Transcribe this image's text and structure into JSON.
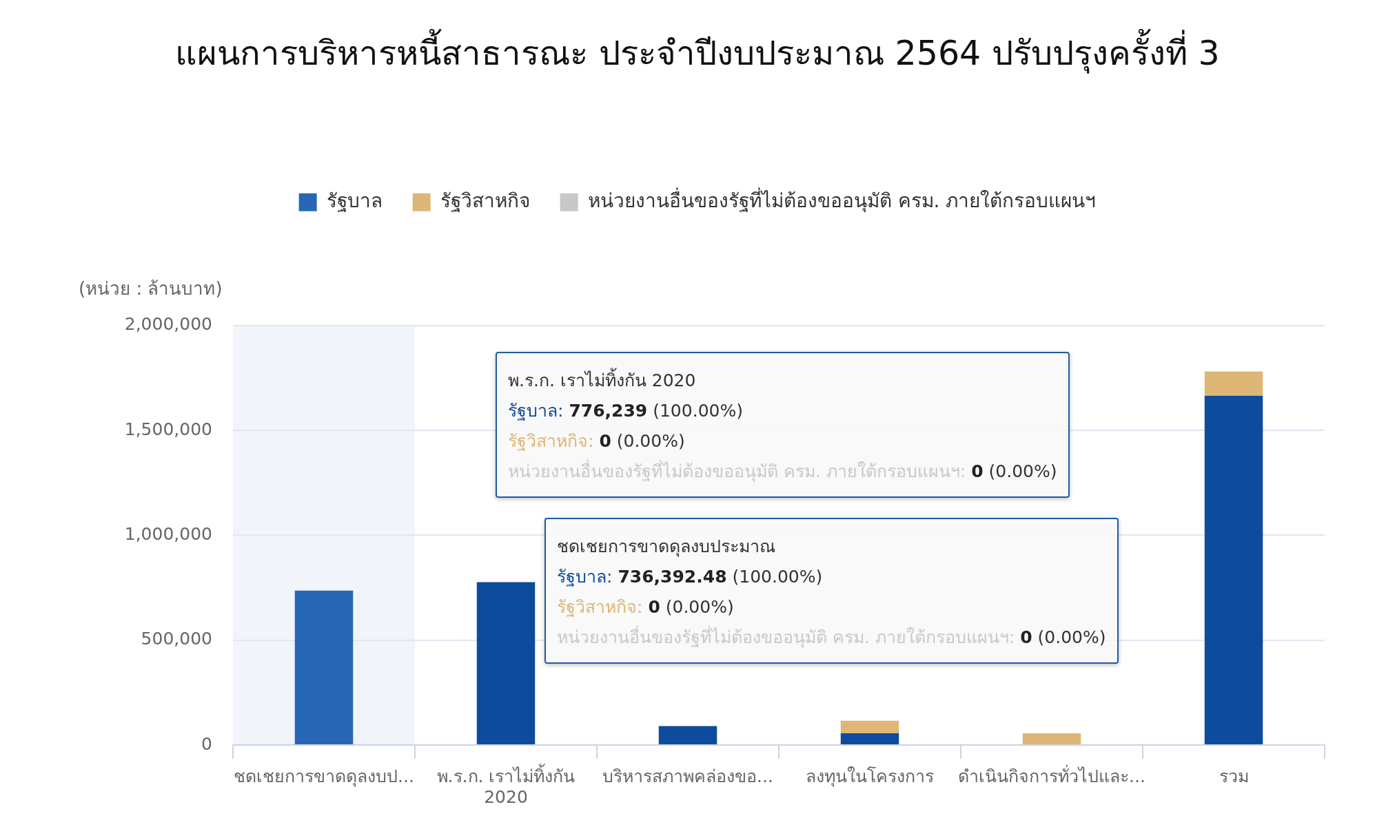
{
  "chart_data": {
    "type": "bar",
    "title": "แผนการบริหารหนี้สาธารณะ ประจำปีงบประมาณ 2564 ปรับปรุงครั้งที่ 3",
    "ylabel": "(หน่วย : ล้านบาท)",
    "categories": [
      "ชดเชยการขาดดุลงบป...",
      "พ.ร.ก. เราไม่ทิ้งกัน 2020",
      "บริหารสภาพคล่องขอ...",
      "ลงทุนในโครงการ",
      "ดำเนินกิจการทั่วไปและ...",
      "รวม"
    ],
    "series": [
      {
        "name": "รัฐบาล",
        "color": "#0d4c9c",
        "colors": [
          "#2767b5",
          "#0d4c9c",
          "#0d4c9c",
          "#0d4c9c",
          "#0d4c9c",
          "#0d4c9c"
        ],
        "values": [
          736392.48,
          776239,
          90000,
          56000,
          0,
          1665000
        ]
      },
      {
        "name": "รัฐวิสาหกิจ",
        "color": "#deb676",
        "values": [
          0,
          0,
          0,
          60000,
          56000,
          116000
        ]
      },
      {
        "name": "หน่วยงานอื่นของรัฐที่ไม่ต้องขออนุมัติ ครม. ภายใต้กรอบแผนฯ",
        "color": "#c8c8c8",
        "values": [
          0,
          0,
          0,
          0,
          0,
          0
        ]
      }
    ],
    "stacked": true,
    "ylim": [
      0,
      2000000
    ],
    "yticks": [
      0,
      {
        "value": 500000,
        "label": "500,000"
      },
      {
        "value": 1000000,
        "label": "1,000,000"
      },
      {
        "value": 1500000,
        "label": "1,500,000"
      },
      {
        "value": 2000000,
        "label": "2,000,000"
      }
    ],
    "grid": "y",
    "legend": "top",
    "bands": [
      {
        "axis": "x",
        "from": "ชดเชยการขาดดุลงบป...",
        "to": "ชดเชยการขาดดุลงบป...",
        "color": "#f1f4f9"
      }
    ],
    "annotations": [
      "พ.ร.ก. เราไม่ทิ้งกัน 2020",
      "รัฐบาล: 776,239 (100.00%)",
      "รัฐวิสาหกิจ: 0 (0.00%)",
      "หน่วยงานอื่นของรัฐที่ไม่ต้องขออนุมัติ ครม. ภายใต้กรอบแผนฯ: 0 (0.00%)",
      "ชดเชยการขาดดุลงบประมาณ",
      "รัฐบาล: 736,392.48 (100.00%)",
      "รัฐวิสาหกิจ: 0 (0.00%)",
      "หน่วยงานอื่นของรัฐที่ไม่ต้องขออนุมัติ ครม. ภายใต้กรอบแผนฯ: 0 (0.00%)"
    ]
  }
}
